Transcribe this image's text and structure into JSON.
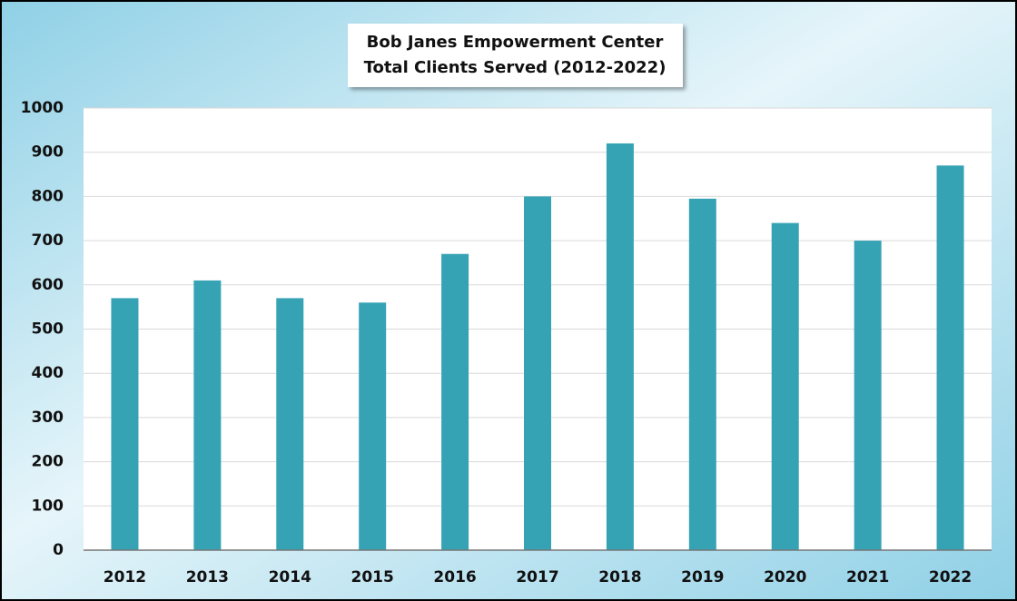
{
  "chart_data": {
    "type": "bar",
    "title": "Bob Janes Empowerment Center",
    "subtitle": "Total Clients Served (2012-2022)",
    "categories": [
      "2012",
      "2013",
      "2014",
      "2015",
      "2016",
      "2017",
      "2018",
      "2019",
      "2020",
      "2021",
      "2022"
    ],
    "values": [
      570,
      610,
      570,
      560,
      670,
      800,
      920,
      795,
      740,
      700,
      870
    ],
    "color": "#36a3b5",
    "ylim": [
      0,
      1000
    ],
    "yticks": [
      0,
      100,
      200,
      300,
      400,
      500,
      600,
      700,
      800,
      900,
      1000
    ],
    "grid": true
  }
}
